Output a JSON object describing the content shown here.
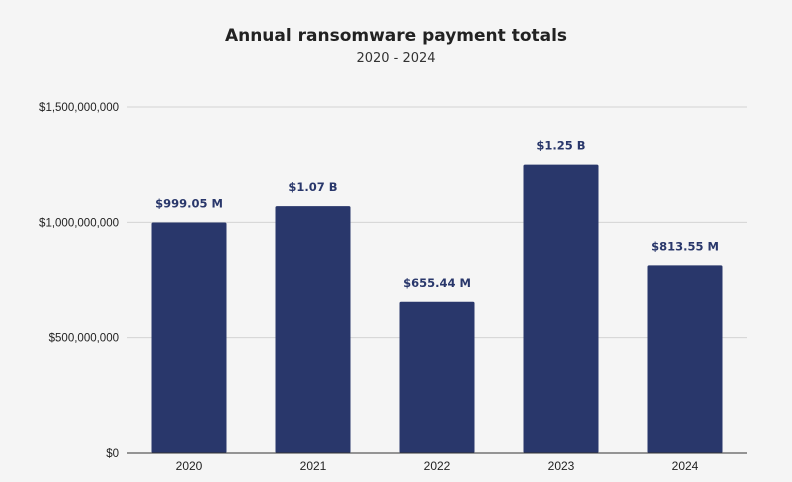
{
  "chart_data": {
    "type": "bar",
    "title": "Annual ransomware payment totals",
    "subtitle": "2020 - 2024",
    "categories": [
      "2020",
      "2021",
      "2022",
      "2023",
      "2024"
    ],
    "values": [
      999050000,
      1070000000,
      655440000,
      1250000000,
      813550000
    ],
    "data_labels": [
      "$999.05 M",
      "$1.07 B",
      "$655.44 M",
      "$1.25 B",
      "$813.55 M"
    ],
    "ylim": [
      0,
      1500000000
    ],
    "y_ticks": [
      0,
      500000000,
      1000000000,
      1500000000
    ],
    "y_tick_labels": [
      "$0",
      "$500,000,000",
      "$1,000,000,000",
      "$1,500,000,000"
    ],
    "grid": true,
    "legend": "none",
    "xlabel": "",
    "ylabel": "",
    "colors": {
      "bar": "#29376b",
      "label": "#29376b"
    }
  }
}
